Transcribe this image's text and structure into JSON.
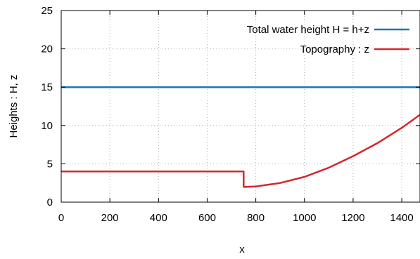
{
  "chart_data": {
    "type": "line",
    "xlabel": "x",
    "ylabel": "Heights : H, z",
    "xlim": [
      0,
      1475
    ],
    "ylim": [
      0,
      25
    ],
    "xticks": [
      0,
      200,
      400,
      600,
      800,
      1000,
      1200,
      1400
    ],
    "yticks": [
      0,
      5,
      10,
      15,
      20,
      25
    ],
    "grid": true,
    "legend_position": "top-right",
    "series": [
      {
        "name": "Total water height H = h+z",
        "color": "#1f77b4",
        "x": [
          0,
          1475
        ],
        "y": [
          15,
          15
        ]
      },
      {
        "name": "Topography : z",
        "color": "#d62728",
        "x": [
          0,
          750,
          750,
          760,
          800,
          900,
          1000,
          1100,
          1200,
          1300,
          1400,
          1475
        ],
        "y": [
          4,
          4,
          2,
          2,
          2.05,
          2.5,
          3.3,
          4.5,
          6.0,
          7.7,
          9.7,
          11.4
        ]
      }
    ]
  }
}
